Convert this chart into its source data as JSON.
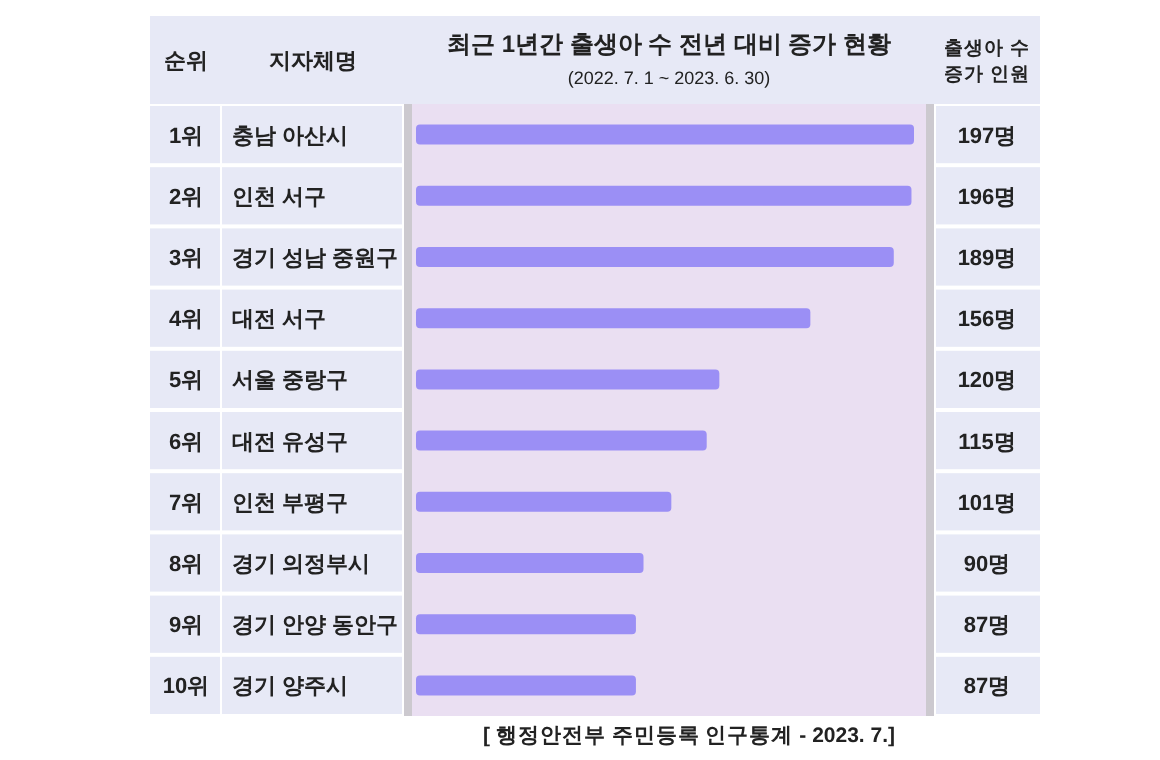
{
  "chart_data": {
    "type": "bar",
    "orientation": "horizontal",
    "title": "최근 1년간 출생아 수 전년 대비 증가 현황",
    "subtitle": "(2022. 7. 1 ~ 2023. 6. 30)",
    "categories": [
      "충남 아산시",
      "인천 서구",
      "경기 성남 중원구",
      "대전 서구",
      "서울 중랑구",
      "대전 유성구",
      "인천 부평구",
      "경기 의정부시",
      "경기 안양 동안구",
      "경기 양주시"
    ],
    "values": [
      197,
      196,
      189,
      156,
      120,
      115,
      101,
      90,
      87,
      87
    ],
    "value_labels": [
      "197명",
      "196명",
      "189명",
      "156명",
      "120명",
      "115명",
      "101명",
      "90명",
      "87명",
      "87명"
    ],
    "color": "#9b8ff5",
    "annotations": [
      "순위",
      "지자체명",
      "출생아 수 증가 인원",
      "[ 행정안전부 주민등록 인구통계 - 2023. 7.]",
      "1위",
      "2위",
      "3위",
      "4위",
      "5위",
      "6위",
      "7위",
      "8위",
      "9위",
      "10위"
    ]
  }
}
